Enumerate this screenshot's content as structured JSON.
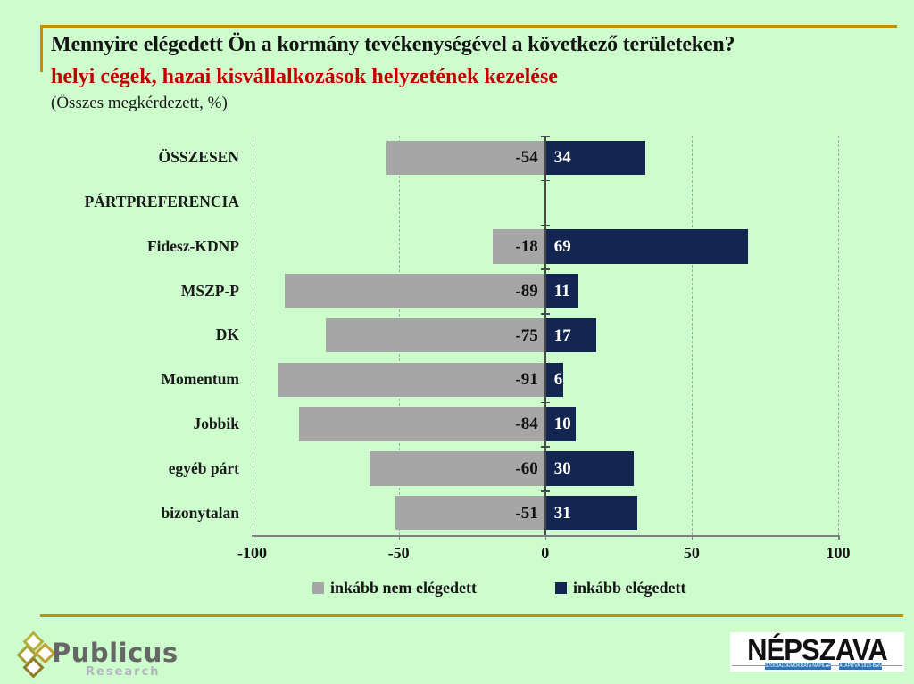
{
  "slide": {
    "title": "Mennyire elégedett Ön a kormány tevékenységével a következő területeken?",
    "subtitle": "helyi cégek, hazai kisvállalkozások helyzetének kezelése",
    "note": "(Összes megkérdezett, %)"
  },
  "colors": {
    "background": "#cdfccd",
    "accent_gold": "#bf9000",
    "subtitle_red": "#c00000",
    "negative_bar_gray": "#a6a6a6",
    "positive_bar_navy": "#132551"
  },
  "chart_data": {
    "type": "bar",
    "orientation": "horizontal-diverging",
    "title": "helyi cégek, hazai kisvállalkozások helyzetének kezelése",
    "categories": [
      "ÖSSZESEN",
      "PÁRTPREFERENCIA",
      "Fidesz-KDNP",
      "MSZP-P",
      "DK",
      "Momentum",
      "Jobbik",
      "egyéb párt",
      "bizonytalan"
    ],
    "series": [
      {
        "name": "inkább nem elégedett",
        "color": "#a6a6a6",
        "values": [
          -54,
          null,
          -18,
          -89,
          -75,
          -91,
          -84,
          -60,
          -51
        ]
      },
      {
        "name": "inkább elégedett",
        "color": "#132551",
        "values": [
          34,
          null,
          69,
          11,
          17,
          6,
          10,
          30,
          31
        ]
      }
    ],
    "xlim": [
      -100,
      100
    ],
    "x_ticks": [
      "-100",
      "-50",
      "0",
      "50",
      "100"
    ],
    "grid": "dashed vertical gridlines at 50-unit intervals",
    "legend_position": "bottom"
  },
  "footer": {
    "publicus_name": "Publicus",
    "publicus_sub": "Research",
    "nepszava_name": "NÉPSZAVA",
    "nepszava_tag_left": "SZOCIÁLDEMOKRATA NAPILAP",
    "nepszava_tag_right": "ALAPÍTVA 1873-BAN"
  }
}
